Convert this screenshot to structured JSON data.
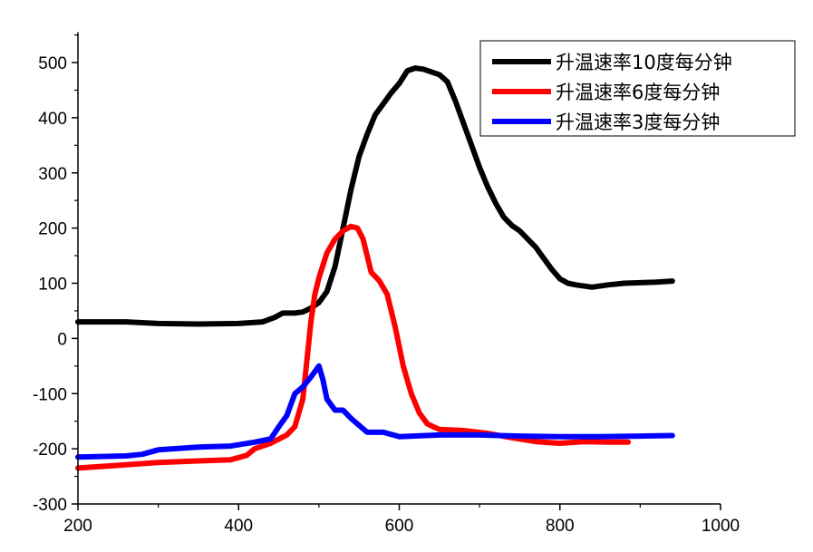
{
  "chart_data": {
    "type": "line",
    "title": "",
    "xlabel": "",
    "ylabel": "",
    "xlim": [
      200,
      1000
    ],
    "ylim": [
      -300,
      555
    ],
    "xticks": [
      200,
      400,
      600,
      800,
      1000
    ],
    "yticks": [
      -300,
      -200,
      -100,
      0,
      100,
      200,
      300,
      400,
      500
    ],
    "grid": false,
    "legend_placement": "top-right",
    "series": [
      {
        "name": "升温速率10度每分钟",
        "color": "#000000",
        "x": [
          200,
          260,
          300,
          350,
          400,
          430,
          445,
          455,
          470,
          480,
          490,
          500,
          510,
          520,
          530,
          540,
          550,
          560,
          570,
          580,
          590,
          600,
          610,
          620,
          630,
          640,
          650,
          660,
          670,
          680,
          690,
          700,
          710,
          720,
          730,
          740,
          750,
          760,
          770,
          780,
          790,
          800,
          810,
          820,
          840,
          860,
          880,
          900,
          920,
          940
        ],
        "y": [
          30,
          30,
          27,
          26,
          27,
          30,
          38,
          46,
          46,
          48,
          55,
          65,
          85,
          130,
          200,
          270,
          330,
          370,
          405,
          425,
          445,
          462,
          485,
          490,
          488,
          483,
          478,
          465,
          430,
          390,
          350,
          310,
          275,
          245,
          220,
          205,
          195,
          180,
          165,
          145,
          125,
          108,
          100,
          97,
          93,
          97,
          100,
          101,
          102,
          104
        ]
      },
      {
        "name": "升温速率6度每分钟",
        "color": "#ff0000",
        "x": [
          200,
          250,
          300,
          350,
          390,
          410,
          420,
          440,
          460,
          470,
          480,
          485,
          490,
          495,
          500,
          510,
          520,
          530,
          540,
          548,
          555,
          560,
          565,
          575,
          585,
          595,
          605,
          615,
          625,
          635,
          650,
          680,
          710,
          740,
          770,
          800,
          830,
          860,
          885
        ],
        "y": [
          -235,
          -230,
          -225,
          -222,
          -220,
          -212,
          -200,
          -190,
          -175,
          -160,
          -110,
          -40,
          30,
          80,
          110,
          155,
          180,
          195,
          203,
          200,
          180,
          150,
          120,
          105,
          80,
          20,
          -50,
          -100,
          -135,
          -155,
          -165,
          -167,
          -172,
          -180,
          -187,
          -190,
          -187,
          -188,
          -188
        ]
      },
      {
        "name": "升温速率3度每分钟",
        "color": "#0000ff",
        "x": [
          200,
          260,
          280,
          300,
          350,
          390,
          420,
          440,
          450,
          460,
          470,
          480,
          490,
          500,
          505,
          510,
          520,
          530,
          540,
          560,
          580,
          600,
          650,
          700,
          750,
          800,
          850,
          900,
          940
        ],
        "y": [
          -215,
          -213,
          -210,
          -202,
          -197,
          -195,
          -188,
          -182,
          -160,
          -140,
          -100,
          -88,
          -70,
          -50,
          -75,
          -110,
          -130,
          -130,
          -145,
          -170,
          -170,
          -178,
          -175,
          -175,
          -177,
          -178,
          -178,
          -177,
          -176
        ]
      }
    ]
  }
}
